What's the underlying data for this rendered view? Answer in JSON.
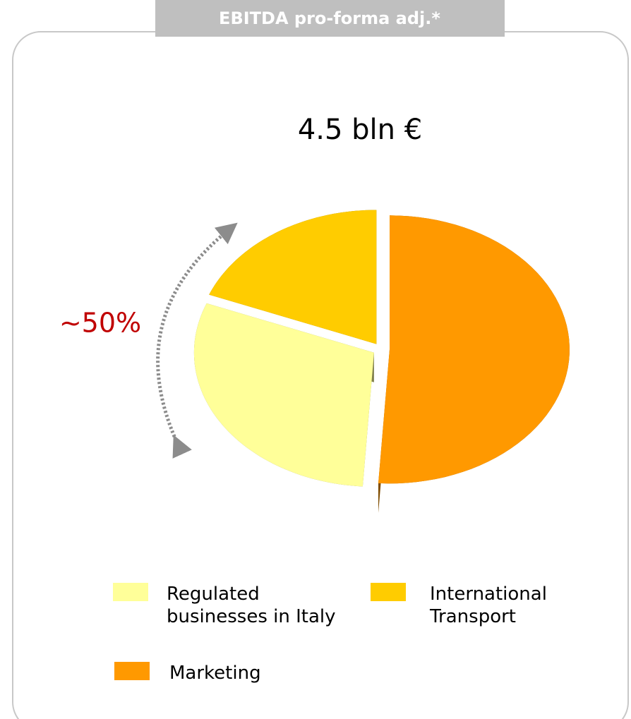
{
  "chart_data": {
    "type": "pie",
    "title": "EBITDA pro-forma adj.*",
    "subtitle": "4.5 bln €",
    "annotation": "~50%",
    "categories": [
      "Marketing",
      "Regulated businesses in Italy",
      "International Transport"
    ],
    "values": [
      51,
      30,
      19
    ],
    "colors": [
      "#ff9900",
      "#ffff99",
      "#ffcc00"
    ]
  }
}
